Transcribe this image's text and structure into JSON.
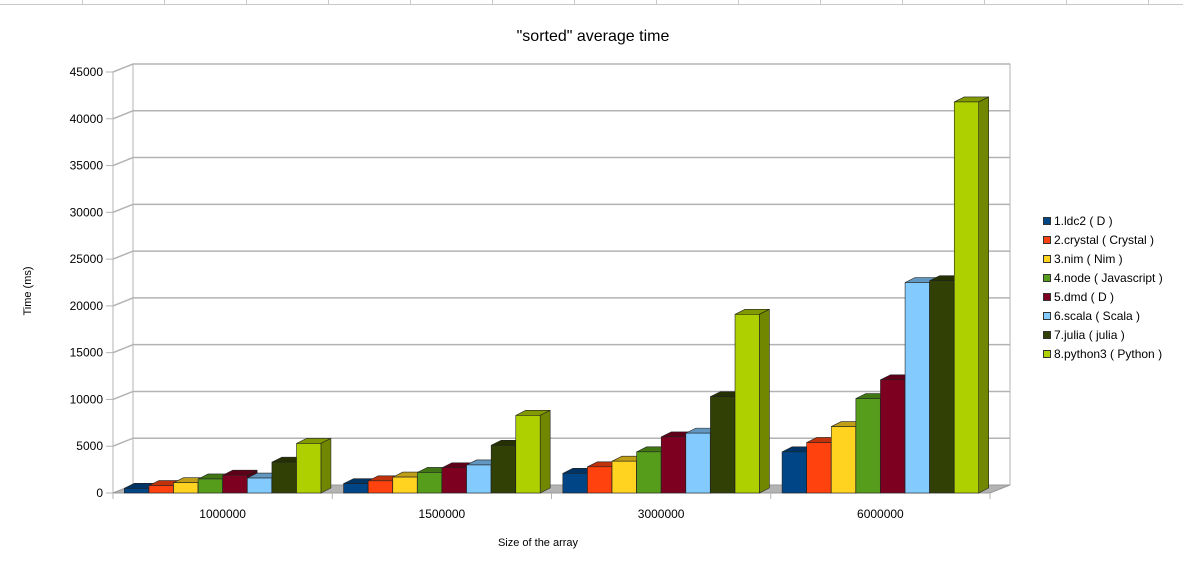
{
  "chart_data": {
    "type": "bar",
    "title": "\"sorted\" average time",
    "xlabel": "Size of the array",
    "ylabel": "Time (ms)",
    "ylim": [
      0,
      45000
    ],
    "ytick_step": 5000,
    "yticks": [
      "0",
      "5000",
      "10000",
      "15000",
      "20000",
      "25000",
      "30000",
      "35000",
      "40000",
      "45000"
    ],
    "categories": [
      "1000000",
      "1500000",
      "3000000",
      "6000000"
    ],
    "grid": true,
    "legend_position": "right",
    "series": [
      {
        "name": "1.ldc2 ( D )",
        "color": "#004586",
        "values": [
          500,
          1000,
          2100,
          4400
        ]
      },
      {
        "name": "2.crystal ( Crystal )",
        "color": "#ff420e",
        "values": [
          800,
          1300,
          2800,
          5400
        ]
      },
      {
        "name": "3.nim ( Nim )",
        "color": "#ffd320",
        "values": [
          1100,
          1700,
          3400,
          7100
        ]
      },
      {
        "name": "4.node ( Javascript )",
        "color": "#579d1c",
        "values": [
          1500,
          2200,
          4400,
          10100
        ]
      },
      {
        "name": "5.dmd ( D )",
        "color": "#7e0021",
        "values": [
          1900,
          2700,
          6000,
          12100
        ]
      },
      {
        "name": "6.scala ( Scala )",
        "color": "#83caff",
        "values": [
          1600,
          3000,
          6400,
          22500
        ]
      },
      {
        "name": "7.julia ( julia )",
        "color": "#314004",
        "values": [
          3300,
          5100,
          10300,
          22700
        ]
      },
      {
        "name": "8.python3 ( Python )",
        "color": "#aecf00",
        "values": [
          5300,
          8300,
          19100,
          41800
        ]
      }
    ]
  }
}
